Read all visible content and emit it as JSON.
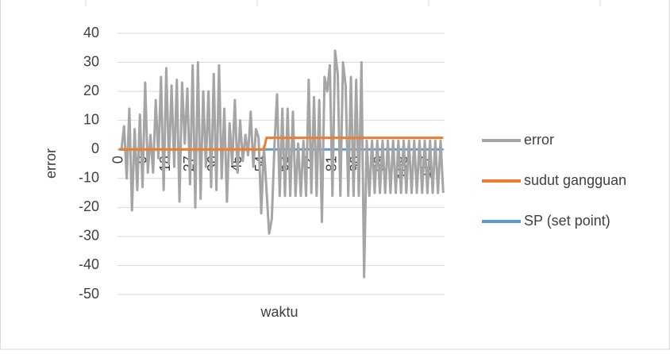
{
  "chart_data": {
    "type": "line",
    "x_label": "waktu",
    "y_label": "error",
    "categories": [
      "0",
      null,
      null,
      null,
      null,
      null,
      null,
      null,
      null,
      "9",
      null,
      null,
      null,
      null,
      null,
      null,
      null,
      null,
      "18",
      null,
      null,
      null,
      null,
      null,
      null,
      null,
      null,
      "27",
      null,
      null,
      null,
      null,
      null,
      null,
      null,
      null,
      "36",
      null,
      null,
      null,
      null,
      null,
      null,
      null,
      null,
      "45",
      null,
      null,
      null,
      null,
      null,
      null,
      null,
      null,
      "54",
      null,
      null,
      null,
      null,
      null,
      null,
      null,
      null,
      "63",
      null,
      null,
      null,
      null,
      null,
      null,
      null,
      null,
      "72",
      null,
      null,
      null,
      null,
      null,
      null,
      null,
      null,
      "81",
      null,
      null,
      null,
      null,
      null,
      null,
      null,
      null,
      "90",
      null,
      null,
      null,
      null,
      null,
      null,
      null,
      null,
      "99",
      null,
      null,
      null,
      null,
      null,
      null,
      null,
      null,
      "108",
      null,
      null,
      null,
      null,
      null,
      null,
      null,
      null,
      "117",
      null,
      null,
      null,
      null,
      null,
      null
    ],
    "series": [
      {
        "name": "error",
        "color": "#a5a5a5",
        "values": [
          0,
          0,
          8,
          -10,
          14,
          -21,
          7,
          -14,
          12,
          -13,
          23,
          -8,
          5,
          -8,
          17,
          -3,
          25,
          -14,
          28,
          -5,
          22,
          -6,
          24,
          -18,
          23,
          2,
          21,
          -12,
          29,
          -20,
          30,
          -17,
          20,
          -6,
          20,
          -13,
          26,
          -14,
          29,
          -10,
          14,
          -18,
          9,
          -5,
          17,
          -8,
          10,
          -4,
          5,
          -2,
          13,
          -6,
          7,
          4,
          -22,
          1,
          -14,
          -29,
          -24,
          1,
          19,
          -16,
          14,
          -16,
          14,
          -16,
          13,
          -16,
          2,
          -16,
          3,
          -16,
          24,
          -15,
          18,
          -16,
          17,
          -25,
          25,
          20,
          29,
          -16,
          34,
          26,
          -16,
          30,
          22,
          -16,
          25,
          -16,
          24,
          -16,
          30,
          -44,
          3,
          -16,
          3,
          -15,
          3,
          -15,
          3,
          -15,
          3,
          -15,
          3,
          -15,
          3,
          -15,
          3,
          -15,
          3,
          -15,
          3,
          -15,
          3,
          -15,
          3,
          -15,
          3,
          -15,
          3,
          -15,
          3,
          -15
        ]
      },
      {
        "name": "sudut gangguan",
        "color": "#ed7d31",
        "values": [
          0,
          0,
          0,
          0,
          0,
          0,
          0,
          0,
          0,
          0,
          0,
          0,
          0,
          0,
          0,
          0,
          0,
          0,
          0,
          0,
          0,
          0,
          0,
          0,
          0,
          0,
          0,
          0,
          0,
          0,
          0,
          0,
          0,
          0,
          0,
          0,
          0,
          0,
          0,
          0,
          0,
          0,
          0,
          0,
          0,
          0,
          0,
          0,
          0,
          0,
          0,
          0,
          0,
          0,
          0,
          0,
          4,
          4,
          4,
          4,
          4,
          4,
          4,
          4,
          4,
          4,
          4,
          4,
          4,
          4,
          4,
          4,
          4,
          4,
          4,
          4,
          4,
          4,
          4,
          4,
          4,
          4,
          4,
          4,
          4,
          4,
          4,
          4,
          4,
          4,
          4,
          4,
          4,
          4,
          4,
          4,
          4,
          4,
          4,
          4,
          4,
          4,
          4,
          4,
          4,
          4,
          4,
          4,
          4,
          4,
          4,
          4,
          4,
          4,
          4,
          4,
          4,
          4,
          4,
          4,
          4,
          4,
          4,
          4
        ]
      },
      {
        "name": "SP (set point)",
        "color": "#5b9bd5",
        "values": [
          0,
          0,
          0,
          0,
          0,
          0,
          0,
          0,
          0,
          0,
          0,
          0,
          0,
          0,
          0,
          0,
          0,
          0,
          0,
          0,
          0,
          0,
          0,
          0,
          0,
          0,
          0,
          0,
          0,
          0,
          0,
          0,
          0,
          0,
          0,
          0,
          0,
          0,
          0,
          0,
          0,
          0,
          0,
          0,
          0,
          0,
          0,
          0,
          0,
          0,
          0,
          0,
          0,
          0,
          0,
          0,
          0,
          0,
          0,
          0,
          0,
          0,
          0,
          0,
          0,
          0,
          0,
          0,
          0,
          0,
          0,
          0,
          0,
          0,
          0,
          0,
          0,
          0,
          0,
          0,
          0,
          0,
          0,
          0,
          0,
          0,
          0,
          0,
          0,
          0,
          0,
          0,
          0,
          0,
          0,
          0,
          0,
          0,
          0,
          0,
          0,
          0,
          0,
          0,
          0,
          0,
          0,
          0,
          0,
          0,
          0,
          0,
          0,
          0,
          0,
          0,
          0,
          0,
          0,
          0,
          0,
          0,
          0,
          0
        ]
      }
    ],
    "ylim": [
      -50,
      40
    ],
    "yticks": [
      -50,
      -40,
      -30,
      -20,
      -10,
      0,
      10,
      20,
      30,
      40
    ],
    "grid": true,
    "legend": "right"
  }
}
